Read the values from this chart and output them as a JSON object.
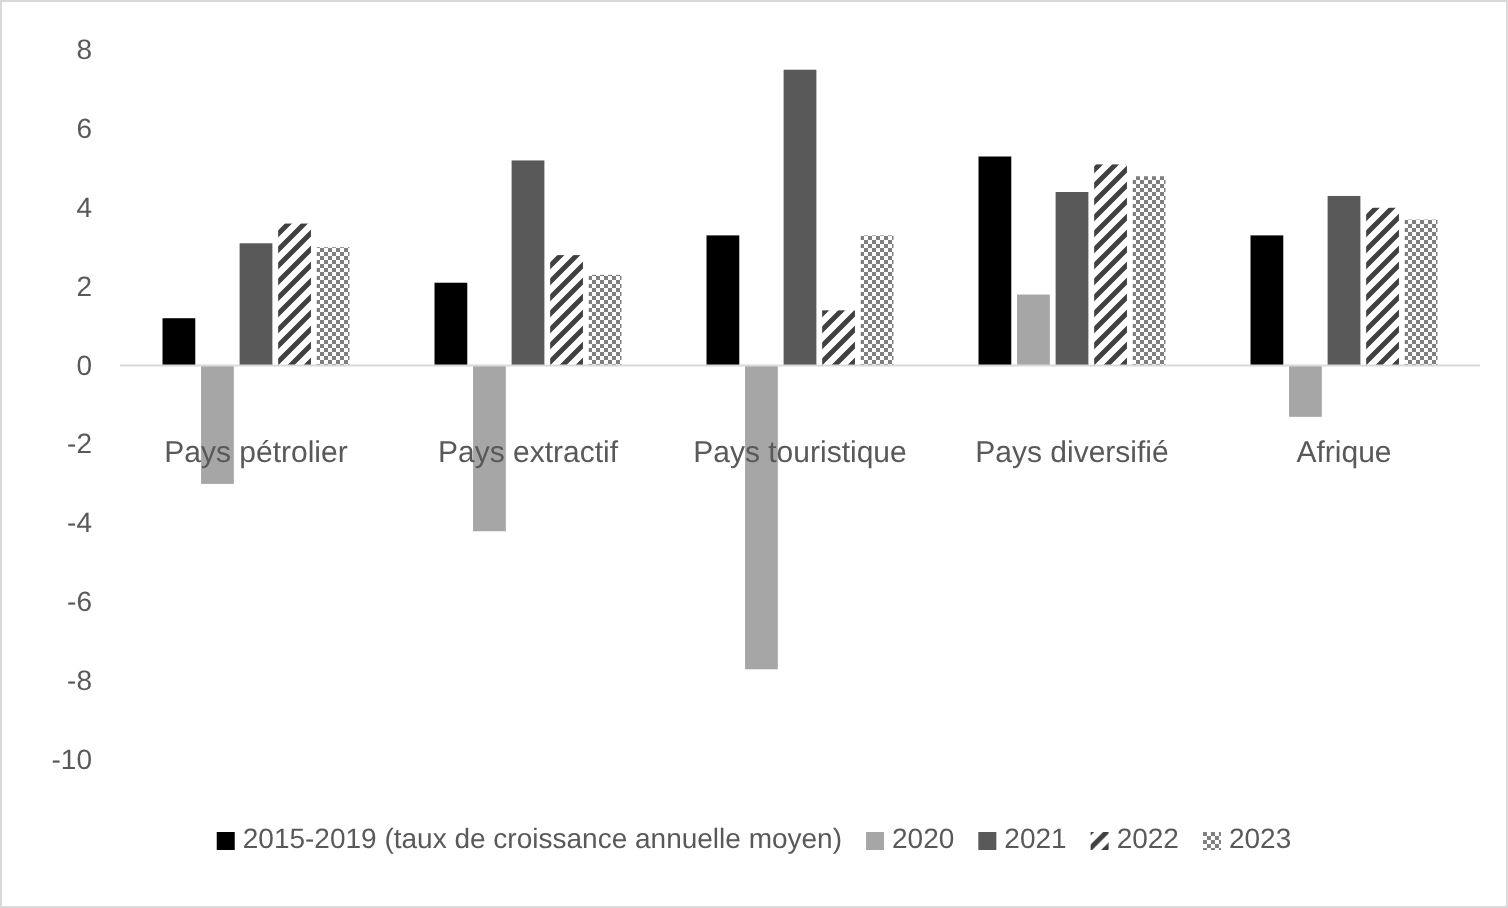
{
  "chart_data": {
    "type": "bar",
    "categories": [
      "Pays pétrolier",
      "Pays extractif",
      "Pays touristique",
      "Pays diversifié",
      "Afrique"
    ],
    "series": [
      {
        "name": "2015-2019 (taux de croissance annuelle moyen)",
        "color": "#000000",
        "values": [
          1.2,
          2.1,
          3.3,
          5.3,
          3.3
        ]
      },
      {
        "name": "2020",
        "color": "#a6a6a6",
        "values": [
          -3.0,
          -4.2,
          -7.7,
          1.8,
          -1.3
        ]
      },
      {
        "name": "2021",
        "color": "#595959",
        "values": [
          3.1,
          5.2,
          7.5,
          4.4,
          4.3
        ]
      },
      {
        "name": "2022",
        "color": "#404040",
        "values": [
          3.6,
          2.8,
          1.4,
          5.1,
          4.0
        ]
      },
      {
        "name": "2023",
        "color": "#7f7f7f",
        "values": [
          3.0,
          2.3,
          3.3,
          4.8,
          3.7
        ]
      }
    ],
    "ylim": [
      -10,
      8
    ],
    "yticks": [
      -10,
      -8,
      -6,
      -4,
      -2,
      0,
      2,
      4,
      6,
      8
    ],
    "grid": false,
    "legend": "bottom"
  }
}
